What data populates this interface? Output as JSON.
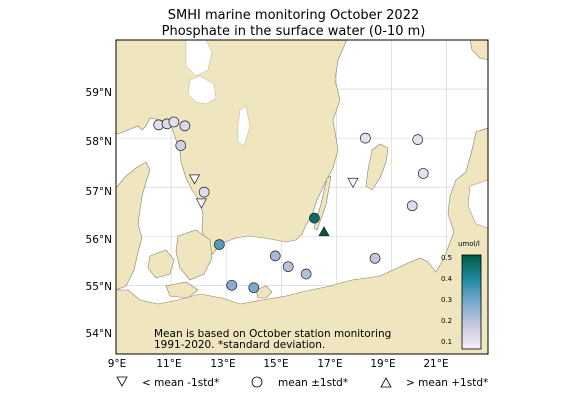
{
  "title": "SMHI marine monitoring October 2022",
  "subtitle": "Phosphate in the surface water (0-10 m)",
  "note_lines": [
    "Mean is based on October station monitoring",
    "1991-2020. *standard deviation."
  ],
  "axes": {
    "lon_range": [
      9,
      22.5
    ],
    "lat_range": [
      53.6,
      60.0
    ],
    "lon_ticks": [
      {
        "value": 9,
        "label": "9°E"
      },
      {
        "value": 11,
        "label": "11°E"
      },
      {
        "value": 13,
        "label": "13°E"
      },
      {
        "value": 15,
        "label": "15°E"
      },
      {
        "value": 17,
        "label": "17°E"
      },
      {
        "value": 19,
        "label": "19°E"
      },
      {
        "value": 21,
        "label": "21°E"
      }
    ],
    "lat_ticks": [
      {
        "value": 54,
        "label": "54°N"
      },
      {
        "value": 55,
        "label": "55°N"
      },
      {
        "value": 56,
        "label": "56°N"
      },
      {
        "value": 57,
        "label": "57°N"
      },
      {
        "value": 58,
        "label": "58°N"
      },
      {
        "value": 59,
        "label": "59°N"
      }
    ]
  },
  "colorbar": {
    "unit": "umol/l",
    "min": 0.05,
    "max": 0.52,
    "ticks": [
      "0.5",
      "0.4",
      "0.3",
      "0.2",
      "0.1"
    ],
    "colors": {
      "low": "#f4f0f8",
      "mid": "#3b8fc0",
      "high": "#00593f"
    }
  },
  "legend": {
    "below": "< mean -1std*",
    "within": "mean ±1std*",
    "above": "> mean +1std*"
  },
  "colors": {
    "land": "#efe6bf",
    "sea": "#ffffff",
    "grid": "#cfcfcf",
    "coast": "#888070"
  },
  "stations": [
    {
      "lon": 10.55,
      "lat": 58.27,
      "type": "within",
      "value": 0.1
    },
    {
      "lon": 10.85,
      "lat": 58.29,
      "type": "within",
      "value": 0.11
    },
    {
      "lon": 11.1,
      "lat": 58.33,
      "type": "within",
      "value": 0.1
    },
    {
      "lon": 11.5,
      "lat": 58.25,
      "type": "within",
      "value": 0.12
    },
    {
      "lon": 11.35,
      "lat": 57.85,
      "type": "within",
      "value": 0.14
    },
    {
      "lon": 11.85,
      "lat": 57.17,
      "type": "below",
      "value": null
    },
    {
      "lon": 12.2,
      "lat": 56.9,
      "type": "within",
      "value": 0.11
    },
    {
      "lon": 12.1,
      "lat": 56.68,
      "type": "below",
      "value": null
    },
    {
      "lon": 12.75,
      "lat": 55.83,
      "type": "within",
      "value": 0.33
    },
    {
      "lon": 13.2,
      "lat": 55.0,
      "type": "within",
      "value": 0.26
    },
    {
      "lon": 14.0,
      "lat": 54.95,
      "type": "within",
      "value": 0.28
    },
    {
      "lon": 14.78,
      "lat": 55.6,
      "type": "within",
      "value": 0.22
    },
    {
      "lon": 15.25,
      "lat": 55.38,
      "type": "within",
      "value": 0.19
    },
    {
      "lon": 15.9,
      "lat": 55.23,
      "type": "within",
      "value": 0.2
    },
    {
      "lon": 16.2,
      "lat": 56.37,
      "type": "within",
      "value": 0.47
    },
    {
      "lon": 16.55,
      "lat": 56.09,
      "type": "above",
      "value": 0.52
    },
    {
      "lon": 17.6,
      "lat": 57.1,
      "type": "below",
      "value": null
    },
    {
      "lon": 18.05,
      "lat": 58.0,
      "type": "within",
      "value": 0.09
    },
    {
      "lon": 18.4,
      "lat": 55.55,
      "type": "within",
      "value": 0.17
    },
    {
      "lon": 19.75,
      "lat": 56.62,
      "type": "within",
      "value": 0.11
    },
    {
      "lon": 19.95,
      "lat": 57.97,
      "type": "within",
      "value": 0.09
    },
    {
      "lon": 20.15,
      "lat": 57.28,
      "type": "within",
      "value": 0.1
    }
  ]
}
